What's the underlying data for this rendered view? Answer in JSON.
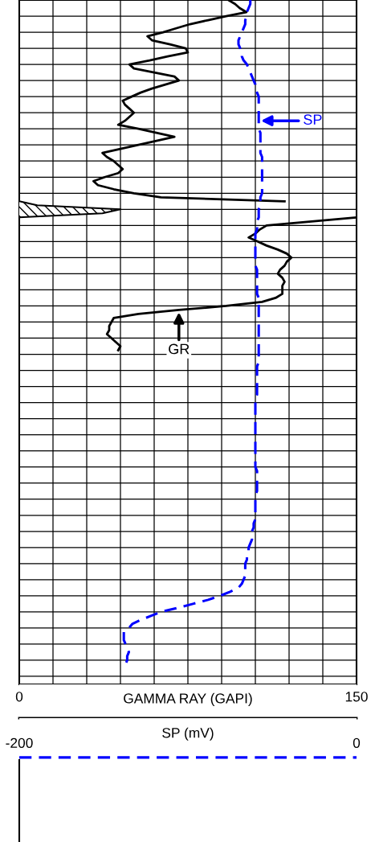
{
  "chart_data": {
    "type": "line",
    "orientation": "horizontal",
    "categories": [
      null,
      null,
      null,
      null,
      null,
      null,
      null,
      null,
      null,
      null,
      null,
      null,
      null,
      null,
      null,
      null,
      null,
      null,
      null,
      null,
      null,
      null,
      null,
      null,
      null,
      null,
      null,
      null,
      null,
      null,
      null,
      null,
      null,
      null,
      null,
      null,
      null,
      null,
      null,
      null,
      null,
      null,
      null,
      null,
      null,
      null,
      null,
      null,
      null,
      null,
      null,
      null,
      null,
      null,
      null,
      null,
      null,
      null,
      null,
      null,
      null,
      null,
      null,
      null,
      null,
      null,
      null,
      null,
      null,
      null,
      null,
      null,
      null,
      null,
      null,
      null,
      null,
      null,
      null,
      null,
      null,
      null,
      null,
      null,
      null,
      null,
      null,
      null,
      null,
      null,
      null,
      null,
      null,
      null,
      null,
      null,
      null,
      null,
      null,
      null,
      null,
      null,
      null,
      null,
      null,
      null,
      null,
      null,
      null,
      null,
      null,
      null,
      null,
      null,
      null,
      null,
      null,
      null,
      null,
      null,
      null,
      null,
      null,
      null,
      null,
      null,
      null,
      null,
      null,
      null,
      null,
      null,
      null,
      null,
      null,
      null,
      null,
      null,
      null,
      null,
      null,
      null,
      null,
      null,
      null,
      null,
      null,
      null,
      null,
      null,
      null,
      null,
      null,
      null,
      null,
      null,
      null,
      null,
      null,
      null,
      null,
      null,
      null,
      null,
      null,
      null,
      null,
      null,
      null,
      null,
      null
    ],
    "xlabel": "GAMMA RAY (GAPI)",
    "x2label": "SP (mV)",
    "xlim": [
      0,
      150
    ],
    "xticks": [
      0,
      {
        "value": 15,
        "label": null
      },
      {
        "value": 30,
        "label": null
      },
      {
        "value": 45,
        "label": null
      },
      {
        "value": 60,
        "label": null
      },
      {
        "value": 75,
        "label": null
      },
      {
        "value": 90,
        "label": null
      },
      {
        "value": 105,
        "label": null
      },
      {
        "value": 120,
        "label": null
      },
      {
        "value": 135,
        "label": null
      },
      150
    ],
    "x2lim": [
      -200,
      0
    ],
    "x2ticks": [
      -200,
      0
    ],
    "grid": true,
    "marker": "none",
    "tick_labels": "x",
    "series": [
      {
        "name": "GR",
        "color": "#000000",
        "line_style": "solid",
        "values": [
          93,
          96,
          98,
          101,
          92,
          84,
          76,
          70,
          64,
          57,
          59,
          67,
          74,
          75,
          66,
          58,
          49,
          51,
          60,
          69,
          71,
          65,
          59,
          54,
          50,
          46,
          47,
          49,
          51,
          49,
          47,
          44,
          53,
          61,
          69,
          61,
          53,
          45,
          37,
          39,
          42,
          44,
          46,
          44,
          38,
          33,
          35,
          42,
          51,
          63,
          118,
          null,
          null,
          null,
          150,
          130,
          110,
          107,
          105,
          102,
          106,
          110,
          115,
          119,
          121,
          119,
          118,
          116,
          115,
          117,
          118,
          117,
          117,
          117,
          114,
          108,
          92,
          71,
          53,
          42,
          41,
          40,
          40,
          39,
          41,
          43,
          45,
          44,
          null,
          null,
          null,
          null,
          null,
          null,
          null,
          null,
          null,
          null,
          null,
          null,
          null,
          null,
          null,
          null,
          null,
          null,
          null,
          null,
          null,
          null,
          null,
          null,
          null,
          null,
          null,
          null,
          null,
          null,
          null,
          null,
          null,
          null,
          null,
          null,
          null,
          null,
          null,
          null,
          null,
          null,
          null,
          null,
          null,
          null,
          null,
          null,
          null,
          null,
          null,
          null,
          null,
          null,
          null,
          null,
          null,
          null,
          null,
          null,
          null,
          null,
          null,
          null,
          null,
          null,
          null,
          null,
          null,
          null,
          null,
          null,
          null,
          null,
          null,
          null,
          null,
          null,
          null,
          null,
          null,
          null,
          null
        ]
      },
      {
        "type": "area",
        "color": "#000000",
        "values": [
          null,
          null,
          null,
          null,
          null,
          null,
          null,
          null,
          null,
          null,
          null,
          null,
          null,
          null,
          null,
          null,
          null,
          null,
          null,
          null,
          null,
          null,
          null,
          null,
          null,
          null,
          null,
          null,
          null,
          null,
          null,
          null,
          null,
          null,
          null,
          null,
          null,
          null,
          null,
          null,
          null,
          null,
          null,
          null,
          null,
          null,
          null,
          null,
          null,
          null,
          0,
          8,
          45,
          37,
          0,
          null,
          null,
          null,
          null,
          null,
          null,
          null,
          null,
          null,
          null,
          null,
          null,
          null,
          null,
          null,
          null,
          null,
          null,
          null,
          null,
          null,
          null,
          null,
          null,
          null,
          null,
          null,
          null,
          null,
          null,
          null,
          null,
          null,
          null,
          null,
          null,
          null,
          null,
          null,
          null,
          null,
          null,
          null,
          null,
          null,
          null,
          null,
          null,
          null,
          null,
          null,
          null,
          null,
          null,
          null,
          null,
          null,
          null,
          null,
          null,
          null,
          null,
          null,
          null,
          null,
          null,
          null,
          null,
          null,
          null,
          null,
          null,
          null,
          null,
          null,
          null,
          null,
          null,
          null,
          null,
          null,
          null,
          null,
          null,
          null,
          null,
          null,
          null,
          null,
          null,
          null,
          null,
          null,
          null,
          null,
          null,
          null,
          null,
          null,
          null,
          null,
          null,
          null,
          null,
          null,
          null,
          null,
          null,
          null,
          null,
          null,
          null,
          null,
          null,
          null,
          null
        ]
      },
      {
        "name": "SP",
        "color": "#0000ff",
        "line_style": "dashed",
        "axis": "x2",
        "values": [
          -63,
          -63,
          -64,
          -65,
          -65,
          -66,
          -66,
          -67,
          -68,
          -69,
          -70,
          -70,
          -69,
          -68,
          -68,
          -67,
          -65,
          -64,
          -63,
          -62,
          -61,
          -60,
          -60,
          -59,
          -58,
          -58,
          -58,
          -58,
          -58,
          -58,
          -58,
          -58,
          -58,
          -57,
          -57,
          -57,
          -57,
          -57,
          -57,
          -56,
          -56,
          -56,
          -56,
          -56,
          -56,
          -56,
          -56,
          -56,
          -56,
          -57,
          -57,
          -57,
          -58,
          -58,
          -58,
          -59,
          -59,
          -59,
          -60,
          -60,
          -60,
          -60,
          -60,
          -60,
          -60,
          -60,
          -60,
          -59,
          -59,
          -59,
          -59,
          -59,
          -59,
          -59,
          -58,
          -58,
          -58,
          -58,
          -58,
          -58,
          -58,
          -58,
          -58,
          -58,
          -58,
          -58,
          -58,
          -58,
          -58,
          -58,
          -58,
          -59,
          -59,
          -59,
          -59,
          -59,
          -59,
          -59,
          -59,
          -60,
          -60,
          -60,
          -60,
          -60,
          -60,
          -60,
          -60,
          -60,
          -60,
          -60,
          -60,
          -60,
          -60,
          -60,
          -60,
          -60,
          -60,
          -59,
          -59,
          -59,
          -59,
          -59,
          -59,
          -60,
          -60,
          -60,
          -60,
          -60,
          -60,
          -60,
          -61,
          -61,
          -62,
          -62,
          -62,
          -63,
          -64,
          -64,
          -65,
          -65,
          -66,
          -66,
          -66,
          -66,
          -67,
          -68,
          -70,
          -75,
          -81,
          -88,
          -97,
          -106,
          -116,
          -122,
          -128,
          -133,
          -135,
          -138,
          -138,
          -138,
          -137,
          -136,
          -135,
          -136,
          -136,
          -137,
          null,
          null,
          null,
          null,
          null
        ]
      }
    ]
  }
}
